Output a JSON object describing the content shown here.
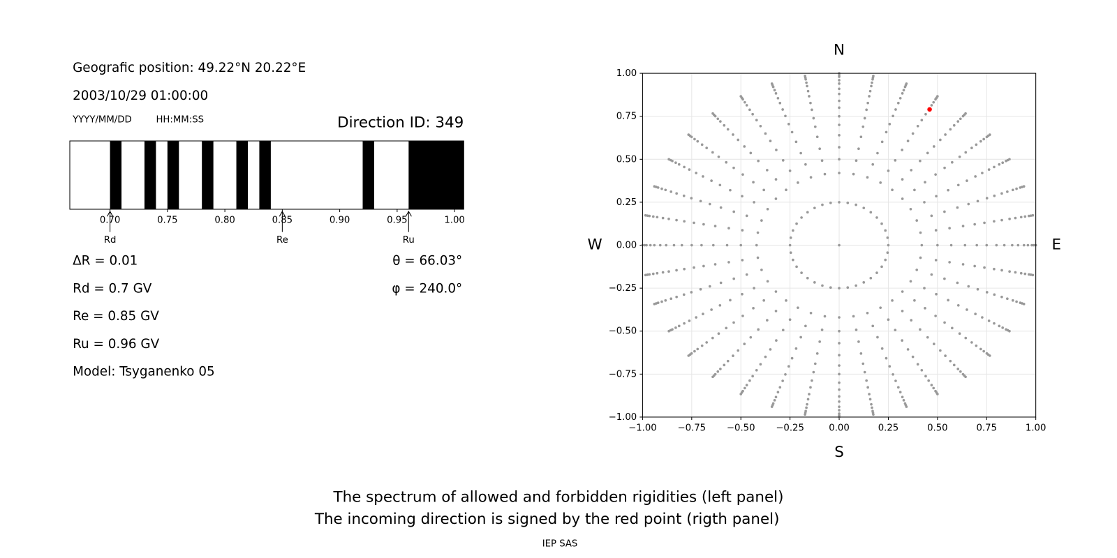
{
  "header": {
    "position": "Geografic position: 49.22°N 20.22°E",
    "datetime": "2003/10/29 01:00:00",
    "date_format": "YYYY/MM/DD",
    "time_format": "HH:MM:SS",
    "direction": "Direction ID: 349"
  },
  "params_left": [
    "ΔR = 0.01",
    "Rd = 0.7 GV",
    "Re = 0.85 GV",
    "Ru = 0.96 GV",
    "Model: Tsyganenko 05"
  ],
  "params_right": [
    "θ = 66.03°",
    "φ = 240.0°"
  ],
  "chart_data": [
    {
      "type": "spectrum",
      "color": "#000000",
      "xlim": [
        0.665,
        1.008
      ],
      "xticks": [
        {
          "value": 0.7,
          "label": "0.70"
        },
        {
          "value": 0.75,
          "label": "0.75"
        },
        {
          "value": 0.8,
          "label": "0.80"
        },
        {
          "value": 0.85,
          "label": "0.85"
        },
        {
          "value": 0.9,
          "label": "0.90"
        },
        {
          "value": 0.95,
          "label": "0.95"
        },
        {
          "value": 1.0,
          "label": "1.00"
        }
      ],
      "bands": [
        [
          0.7,
          0.71
        ],
        [
          0.73,
          0.74
        ],
        [
          0.75,
          0.76
        ],
        [
          0.78,
          0.79
        ],
        [
          0.81,
          0.82
        ],
        [
          0.83,
          0.84
        ],
        [
          0.92,
          0.93
        ],
        [
          0.96,
          1.008
        ]
      ],
      "markers": [
        {
          "label": "Rd",
          "value": 0.7
        },
        {
          "label": "Re",
          "value": 0.85
        },
        {
          "label": "Ru",
          "value": 0.96
        }
      ]
    },
    {
      "type": "polar-scatter",
      "color": "#999999",
      "grid": true,
      "xlim": [
        -1,
        1
      ],
      "ylim": [
        -1,
        1
      ],
      "xticks": [
        {
          "value": -1,
          "label": "−1.00"
        },
        {
          "value": -0.75,
          "label": "−0.75"
        },
        {
          "value": -0.5,
          "label": "−0.50"
        },
        {
          "value": -0.25,
          "label": "−0.25"
        },
        {
          "value": 0,
          "label": "0.00"
        },
        {
          "value": 0.25,
          "label": "0.25"
        },
        {
          "value": 0.5,
          "label": "0.50"
        },
        {
          "value": 0.75,
          "label": "0.75"
        },
        {
          "value": 1,
          "label": "1.00"
        }
      ],
      "yticks": [
        {
          "value": -1,
          "label": "−1.00"
        },
        {
          "value": -0.75,
          "label": "−0.75"
        },
        {
          "value": -0.5,
          "label": "−0.50"
        },
        {
          "value": -0.25,
          "label": "−0.25"
        },
        {
          "value": 0,
          "label": "0.00"
        },
        {
          "value": 0.25,
          "label": "0.25"
        },
        {
          "value": 0.5,
          "label": "0.50"
        },
        {
          "value": 0.75,
          "label": "0.75"
        },
        {
          "value": 1,
          "label": "1.00"
        }
      ],
      "center": {
        "x": 0,
        "y": 0
      },
      "rings": [
        0.25,
        0.42,
        0.5,
        0.57,
        0.64,
        0.7,
        0.75,
        0.8,
        0.84,
        0.88,
        0.91,
        0.94,
        0.96,
        0.98,
        0.99,
        1.0
      ],
      "spokes": [
        0,
        10,
        20,
        30,
        40,
        50,
        60,
        70,
        80,
        90,
        100,
        110,
        120,
        130,
        140,
        150,
        160,
        170,
        180,
        190,
        200,
        210,
        220,
        230,
        240,
        250,
        260,
        270,
        280,
        290,
        300,
        310,
        320,
        330,
        340,
        350
      ],
      "highlight": {
        "x": 0.46,
        "y": 0.79,
        "color": "#ff0000"
      },
      "compass": {
        "N": "N",
        "S": "S",
        "W": "W",
        "E": "E"
      }
    }
  ],
  "footer": {
    "line1": "The spectrum of allowed and forbidden rigidities (left panel)",
    "line2": "The incoming direction is signed by the red point (rigth panel)",
    "credit": "IEP SAS"
  }
}
